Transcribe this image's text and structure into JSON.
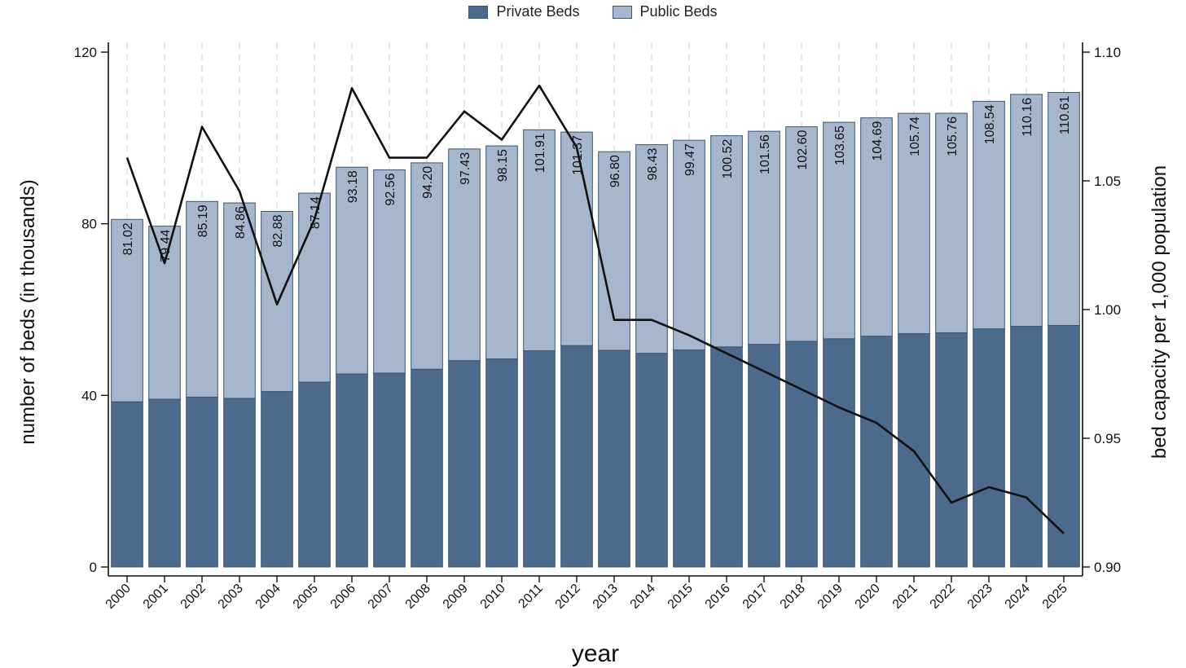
{
  "chart_data": {
    "type": "bar",
    "stacked": true,
    "categories": [
      "2000",
      "2001",
      "2002",
      "2003",
      "2004",
      "2005",
      "2006",
      "2007",
      "2008",
      "2009",
      "2010",
      "2011",
      "2012",
      "2013",
      "2014",
      "2015",
      "2016",
      "2017",
      "2018",
      "2019",
      "2020",
      "2021",
      "2022",
      "2023",
      "2024",
      "2025"
    ],
    "series": [
      {
        "name": "Private Beds",
        "color": "#4c6a8c",
        "values": [
          38.5,
          39.1,
          39.6,
          39.3,
          40.9,
          43.1,
          45.0,
          45.2,
          46.1,
          48.1,
          48.5,
          50.4,
          51.6,
          50.5,
          49.8,
          50.6,
          51.3,
          51.9,
          52.6,
          53.2,
          53.8,
          54.4,
          54.6,
          55.5,
          56.1,
          56.3
        ]
      },
      {
        "name": "Public Beds",
        "color": "#a6b7cd",
        "values": [
          42.52,
          40.34,
          45.59,
          45.56,
          41.98,
          44.04,
          48.18,
          47.36,
          48.1,
          49.33,
          49.65,
          51.51,
          49.77,
          46.3,
          48.63,
          48.87,
          49.22,
          49.66,
          50.0,
          50.45,
          50.89,
          51.34,
          51.16,
          53.04,
          54.06,
          54.31
        ]
      }
    ],
    "totals": [
      81.02,
      79.44,
      85.19,
      84.86,
      82.88,
      87.14,
      93.18,
      92.56,
      94.2,
      97.43,
      98.15,
      101.91,
      101.37,
      96.8,
      98.43,
      99.47,
      100.52,
      101.56,
      102.6,
      103.65,
      104.69,
      105.74,
      105.76,
      108.54,
      110.16,
      110.61
    ],
    "total_labels": [
      "81.02",
      "79.44",
      "85.19",
      "84.86",
      "82.88",
      "87.14",
      "93.18",
      "92.56",
      "94.20",
      "97.43",
      "98.15",
      "101.91",
      "101.37",
      "96.80",
      "98.43",
      "99.47",
      "100.52",
      "101.56",
      "102.60",
      "103.65",
      "104.69",
      "105.74",
      "105.76",
      "108.54",
      "110.16",
      "110.61"
    ],
    "line": {
      "axis": "right",
      "color": "#111111",
      "values": [
        1.059,
        1.018,
        1.071,
        1.046,
        1.002,
        1.035,
        1.086,
        1.059,
        1.059,
        1.077,
        1.066,
        1.087,
        1.063,
        0.996,
        0.996,
        0.99,
        0.983,
        0.976,
        0.969,
        0.962,
        0.956,
        0.945,
        0.925,
        0.931,
        0.927,
        0.913
      ]
    },
    "xlabel": "year",
    "ylabel": "number of beds (in thousands)",
    "ylabel_right": "bed capacity per 1,000 population",
    "ylim": [
      0,
      120
    ],
    "ylim_right": [
      0.9,
      1.1
    ],
    "yticks": [
      0,
      40,
      80,
      120
    ],
    "yticks_right": [
      "0.90",
      "0.95",
      "1.00",
      "1.05",
      "1.10"
    ],
    "legend_position": "top-center",
    "grid": "dashed vertical"
  }
}
